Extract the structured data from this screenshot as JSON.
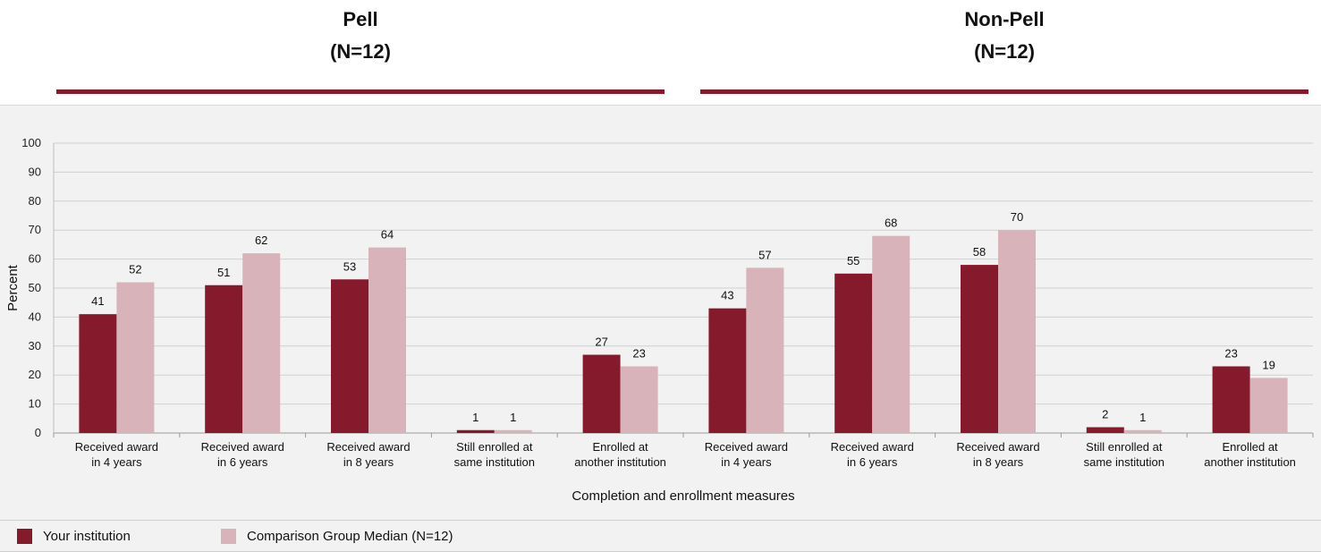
{
  "groups": [
    {
      "title": "Pell",
      "subtitle": "(N=12)"
    },
    {
      "title": "Non-Pell",
      "subtitle": "(N=12)"
    }
  ],
  "colors": {
    "your_institution": "#861a2d",
    "comparison": "#d8b4ba",
    "rule": "#861a2d",
    "grid": "#d0d0d0"
  },
  "legend": [
    {
      "label": "Your institution",
      "color": "#861a2d"
    },
    {
      "label": "Comparison Group Median (N=12)",
      "color": "#d8b4ba"
    }
  ],
  "chart_data": {
    "type": "bar",
    "title": "",
    "xlabel": "Completion and enrollment measures",
    "ylabel": "Percent",
    "ylim": [
      0,
      100
    ],
    "yticks": [
      0,
      10,
      20,
      30,
      40,
      50,
      60,
      70,
      80,
      90,
      100
    ],
    "grid": true,
    "legend_position": "bottom",
    "categories": [
      [
        "Received award",
        "in 4 years"
      ],
      [
        "Received award",
        "in 6 years"
      ],
      [
        "Received award",
        "in 8 years"
      ],
      [
        "Still enrolled at",
        "same institution"
      ],
      [
        "Enrolled at",
        "another institution"
      ],
      [
        "Received award",
        "in 4 years"
      ],
      [
        "Received award",
        "in 6 years"
      ],
      [
        "Received award",
        "in 8 years"
      ],
      [
        "Still enrolled at",
        "same institution"
      ],
      [
        "Enrolled at",
        "another institution"
      ]
    ],
    "series": [
      {
        "name": "Your institution",
        "values": [
          41,
          51,
          53,
          1,
          27,
          43,
          55,
          58,
          2,
          23
        ]
      },
      {
        "name": "Comparison Group Median (N=12)",
        "values": [
          52,
          62,
          64,
          1,
          23,
          57,
          68,
          70,
          1,
          19
        ]
      }
    ]
  }
}
